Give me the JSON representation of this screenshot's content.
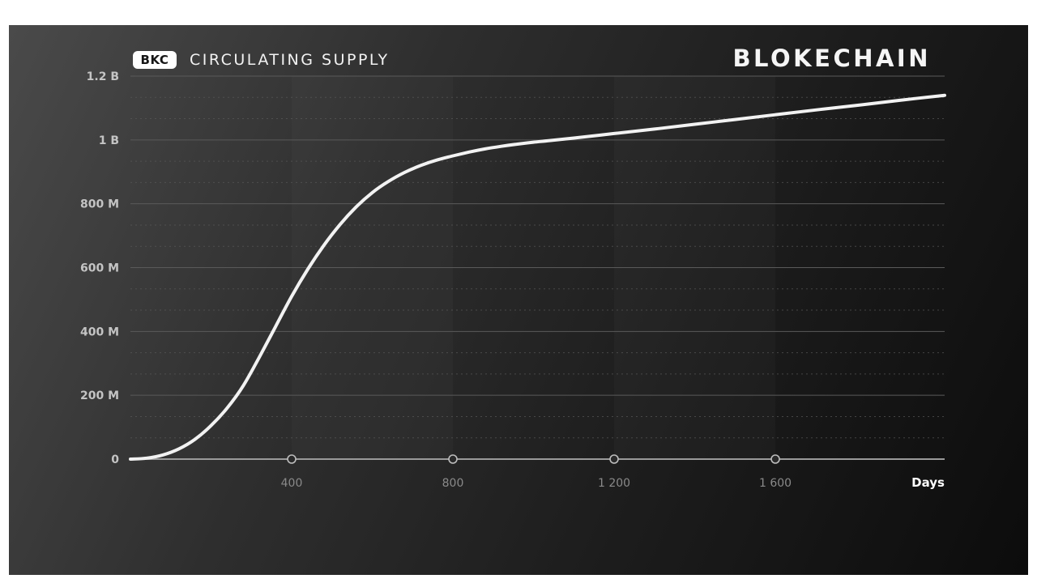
{
  "header": {
    "badge": "BKC",
    "title": "CIRCULATING SUPPLY",
    "brand": "BLOKECHAIN"
  },
  "colors": {
    "background_light": "#4a4a4a",
    "background_dark": "#0c0c0c",
    "line": "#f2f2f2",
    "gridline": "#5a5a5a",
    "ytick": "#c4c4c4",
    "xtick": "#8a8a8a"
  },
  "chart_data": {
    "type": "line",
    "title": "CIRCULATING SUPPLY",
    "xlabel": "Days",
    "ylabel": "",
    "xlim": [
      0,
      2020
    ],
    "ylim": [
      0,
      1200000000
    ],
    "x_ticks": [
      400,
      800,
      1200,
      1600
    ],
    "x_tick_labels": [
      "400",
      "800",
      "1 200",
      "1 600"
    ],
    "y_ticks": [
      0,
      200000000,
      400000000,
      600000000,
      800000000,
      1000000000,
      1200000000
    ],
    "y_tick_labels": [
      "0",
      "200 M",
      "400 M",
      "600 M",
      "800 M",
      "1 B",
      "1.2 B"
    ],
    "grid": true,
    "legend": "none",
    "series": [
      {
        "x": [
          0,
          40,
          80,
          120,
          160,
          200,
          240,
          280,
          320,
          360,
          400,
          440,
          480,
          520,
          560,
          600,
          640,
          680,
          720,
          760,
          800,
          840,
          880,
          920,
          960,
          1000,
          1040,
          1100,
          1200,
          1300,
          1400,
          1500,
          1600,
          1700,
          1800,
          1900,
          2020
        ],
        "y": [
          0,
          3000000,
          13000000,
          32000000,
          62000000,
          105000000,
          160000000,
          230000000,
          320000000,
          415000000,
          510000000,
          595000000,
          670000000,
          735000000,
          790000000,
          835000000,
          870000000,
          898000000,
          920000000,
          937000000,
          950000000,
          962000000,
          972000000,
          980000000,
          987000000,
          993000000,
          998000000,
          1006000000,
          1020000000,
          1034000000,
          1049000000,
          1064000000,
          1079000000,
          1094000000,
          1108000000,
          1123000000,
          1140000000
        ]
      }
    ]
  }
}
